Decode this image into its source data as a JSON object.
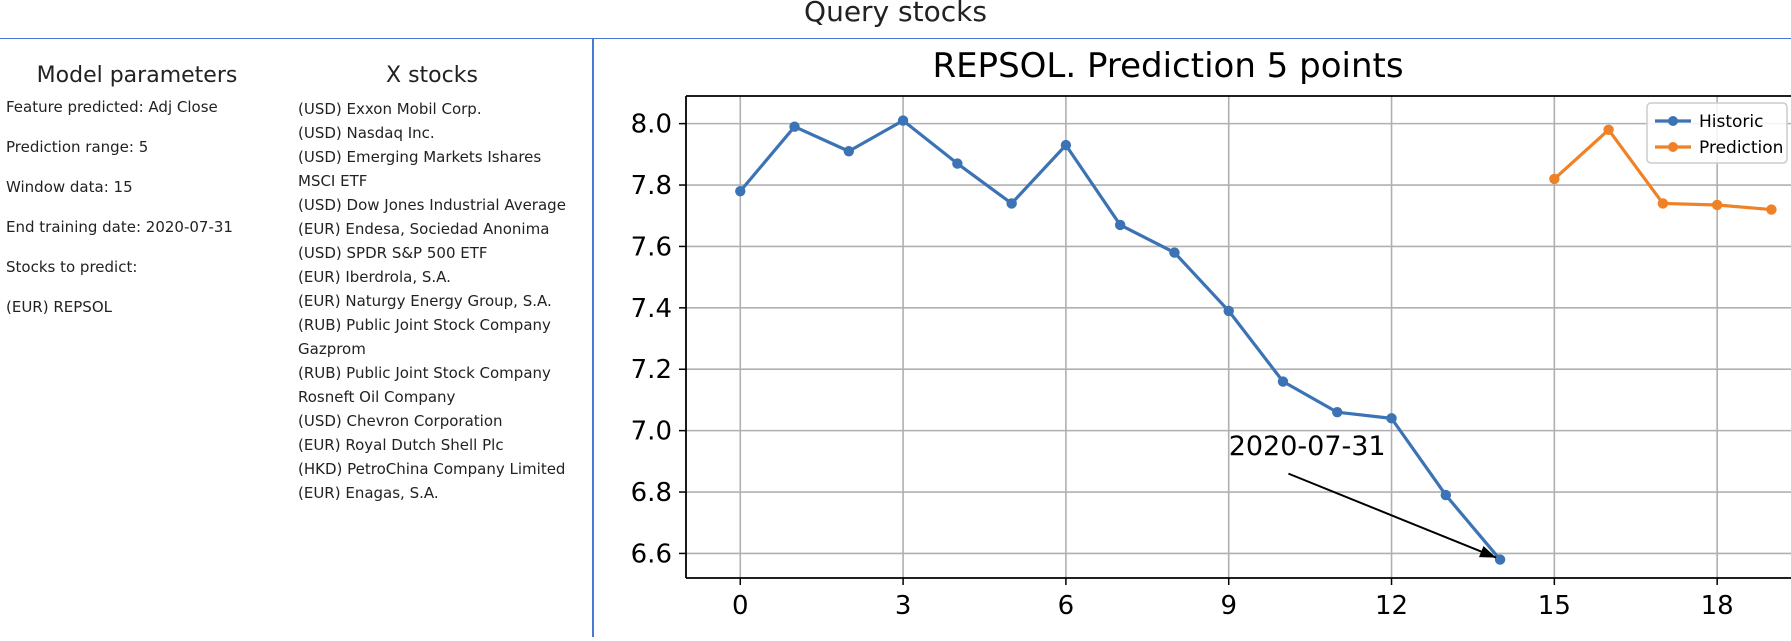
{
  "header": {
    "title": "Query stocks"
  },
  "params": {
    "title": "Model parameters",
    "lines": [
      "Feature predicted: Adj Close",
      "Prediction range: 5",
      "Window data: 15",
      "End training date: 2020-07-31",
      "Stocks to predict:",
      "(EUR) REPSOL"
    ]
  },
  "stocks": {
    "title": "X stocks",
    "lines": [
      "(USD) Exxon Mobil Corp.",
      "(USD) Nasdaq Inc.",
      "(USD) Emerging Markets Ishares",
      "MSCI ETF",
      "(USD) Dow Jones Industrial Average",
      "(EUR) Endesa, Sociedad Anonima",
      "(USD) SPDR S&P 500 ETF",
      "(EUR) Iberdrola, S.A.",
      "(EUR) Naturgy Energy Group, S.A.",
      "(RUB) Public Joint Stock Company",
      "Gazprom",
      "(RUB) Public Joint Stock Company",
      "Rosneft Oil Company",
      "(USD) Chevron Corporation",
      "(EUR) Royal Dutch Shell Plc",
      "(HKD) PetroChina Company Limited",
      "(EUR) Enagas, S.A."
    ]
  },
  "chart_data": {
    "type": "line",
    "title": "REPSOL. Prediction 5 points",
    "xlabel": "",
    "ylabel": "",
    "xlim": [
      -1,
      19.6
    ],
    "ylim": [
      6.52,
      8.09
    ],
    "xticks": [
      0,
      3,
      6,
      9,
      12,
      15,
      18
    ],
    "yticks": [
      6.6,
      6.8,
      7.0,
      7.2,
      7.4,
      7.6,
      7.8,
      8.0
    ],
    "ytick_labels": [
      "6.6",
      "6.8",
      "7.0",
      "7.2",
      "7.4",
      "7.6",
      "7.8",
      "8.0"
    ],
    "grid": true,
    "legend_position": "top-right",
    "series": [
      {
        "name": "Historic",
        "color": "#3b73b4",
        "x": [
          0,
          1,
          2,
          3,
          4,
          5,
          6,
          7,
          8,
          9,
          10,
          11,
          12,
          13,
          14
        ],
        "values": [
          7.78,
          7.99,
          7.91,
          8.01,
          7.87,
          7.74,
          7.93,
          7.67,
          7.58,
          7.39,
          7.16,
          7.06,
          7.04,
          6.79,
          6.58
        ]
      },
      {
        "name": "Prediction",
        "color": "#ef8127",
        "x": [
          15,
          16,
          17,
          18,
          19
        ],
        "values": [
          7.82,
          7.98,
          7.74,
          7.735,
          7.72
        ]
      }
    ],
    "annotation": {
      "text": "2020-07-31",
      "text_x": 9,
      "text_y": 6.92,
      "arrow_from_x": 10.1,
      "arrow_from_y": 6.86,
      "arrow_to_x": 14,
      "arrow_to_y": 6.58
    }
  }
}
